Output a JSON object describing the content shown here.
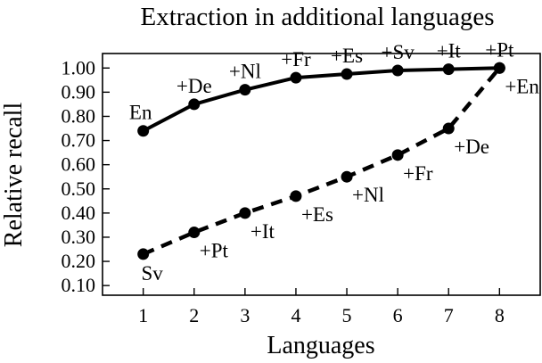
{
  "chart_data": {
    "type": "line",
    "title": "Extraction in additional languages",
    "xlabel": "Languages",
    "ylabel": "Relative recall",
    "x": [
      1,
      2,
      3,
      4,
      5,
      6,
      7,
      8
    ],
    "xlim": [
      0.2,
      8.8
    ],
    "ylim": [
      0.06,
      1.06
    ],
    "yticks": [
      0.1,
      0.2,
      0.3,
      0.4,
      0.5,
      0.6,
      0.7,
      0.8,
      0.9,
      1.0
    ],
    "ytick_labels": [
      "0.10",
      "0.20",
      "0.30",
      "0.40",
      "0.50",
      "0.60",
      "0.70",
      "0.80",
      "0.90",
      "1.00"
    ],
    "xtick_labels": [
      "1",
      "2",
      "3",
      "4",
      "5",
      "6",
      "7",
      "8"
    ],
    "grid": false,
    "series": [
      {
        "style": "solid",
        "values": [
          0.74,
          0.85,
          0.91,
          0.96,
          0.975,
          0.99,
          0.995,
          1.0
        ],
        "point_labels": [
          "En",
          "+De",
          "+Nl",
          "+Fr",
          "+Es",
          "+Sv",
          "+It",
          "+Pt"
        ],
        "label_position": "above"
      },
      {
        "style": "dashed",
        "values": [
          0.23,
          0.32,
          0.4,
          0.47,
          0.55,
          0.64,
          0.75,
          1.0
        ],
        "point_labels": [
          "Sv",
          "+Pt",
          "+It",
          "+Es",
          "+Nl",
          "+Fr",
          "+De",
          "+En"
        ],
        "label_position": "below-right"
      }
    ]
  }
}
